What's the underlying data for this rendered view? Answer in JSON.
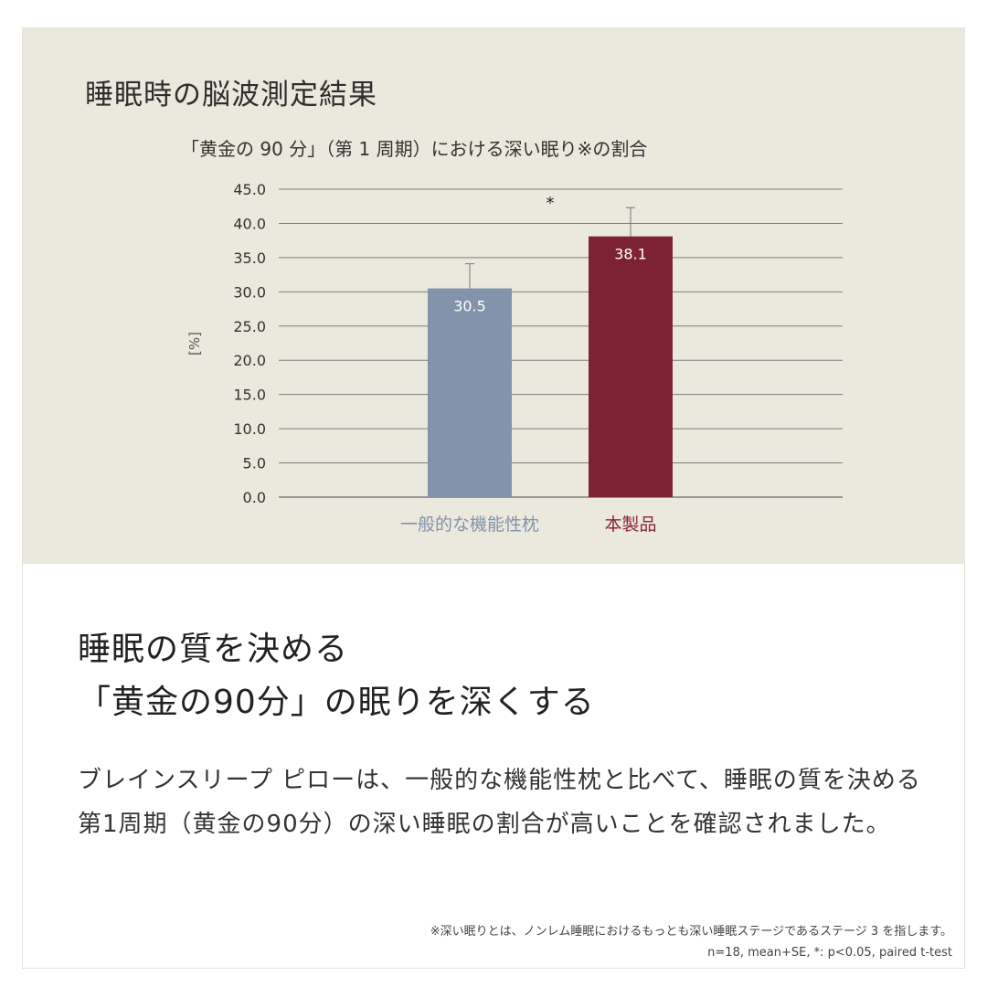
{
  "panel": {
    "title": "睡眠時の脳波測定結果"
  },
  "chart_data": {
    "type": "bar",
    "title": "「黄金の 90 分」（第 1 周期）における深い眠り※の割合",
    "xlabel": "",
    "ylabel": "[%]",
    "ylim": [
      0,
      45
    ],
    "yticks": [
      "0.0",
      "5.0",
      "10.0",
      "15.0",
      "20.0",
      "25.0",
      "30.0",
      "35.0",
      "40.0",
      "45.0"
    ],
    "grid": true,
    "categories": [
      "一般的な機能性枕",
      "本製品"
    ],
    "values": [
      30.5,
      38.1
    ],
    "value_labels": [
      "30.5",
      "38.1"
    ],
    "error_upper": [
      34.1,
      42.3
    ],
    "bar_colors": [
      "#8393ab",
      "#7c2232"
    ],
    "category_label_colors": [
      "#8393ab",
      "#8a2334"
    ],
    "significance_marker": "*"
  },
  "headline": {
    "line1": "睡眠の質を決める",
    "line2": "「黄金の90分」の眠りを深くする"
  },
  "body": {
    "text": "ブレインスリープ ピローは、一般的な機能性枕と比べて、睡眠の質を決める第1周期（黄金の90分）の深い睡眠の割合が高いことを確認されました。"
  },
  "footnote": {
    "line1": "※深い眠りとは、ノンレム睡眠におけるもっとも深い睡眠ステージであるステージ 3 を指します。",
    "line2": "n=18, mean+SE, *: p<0.05, paired t-test"
  }
}
